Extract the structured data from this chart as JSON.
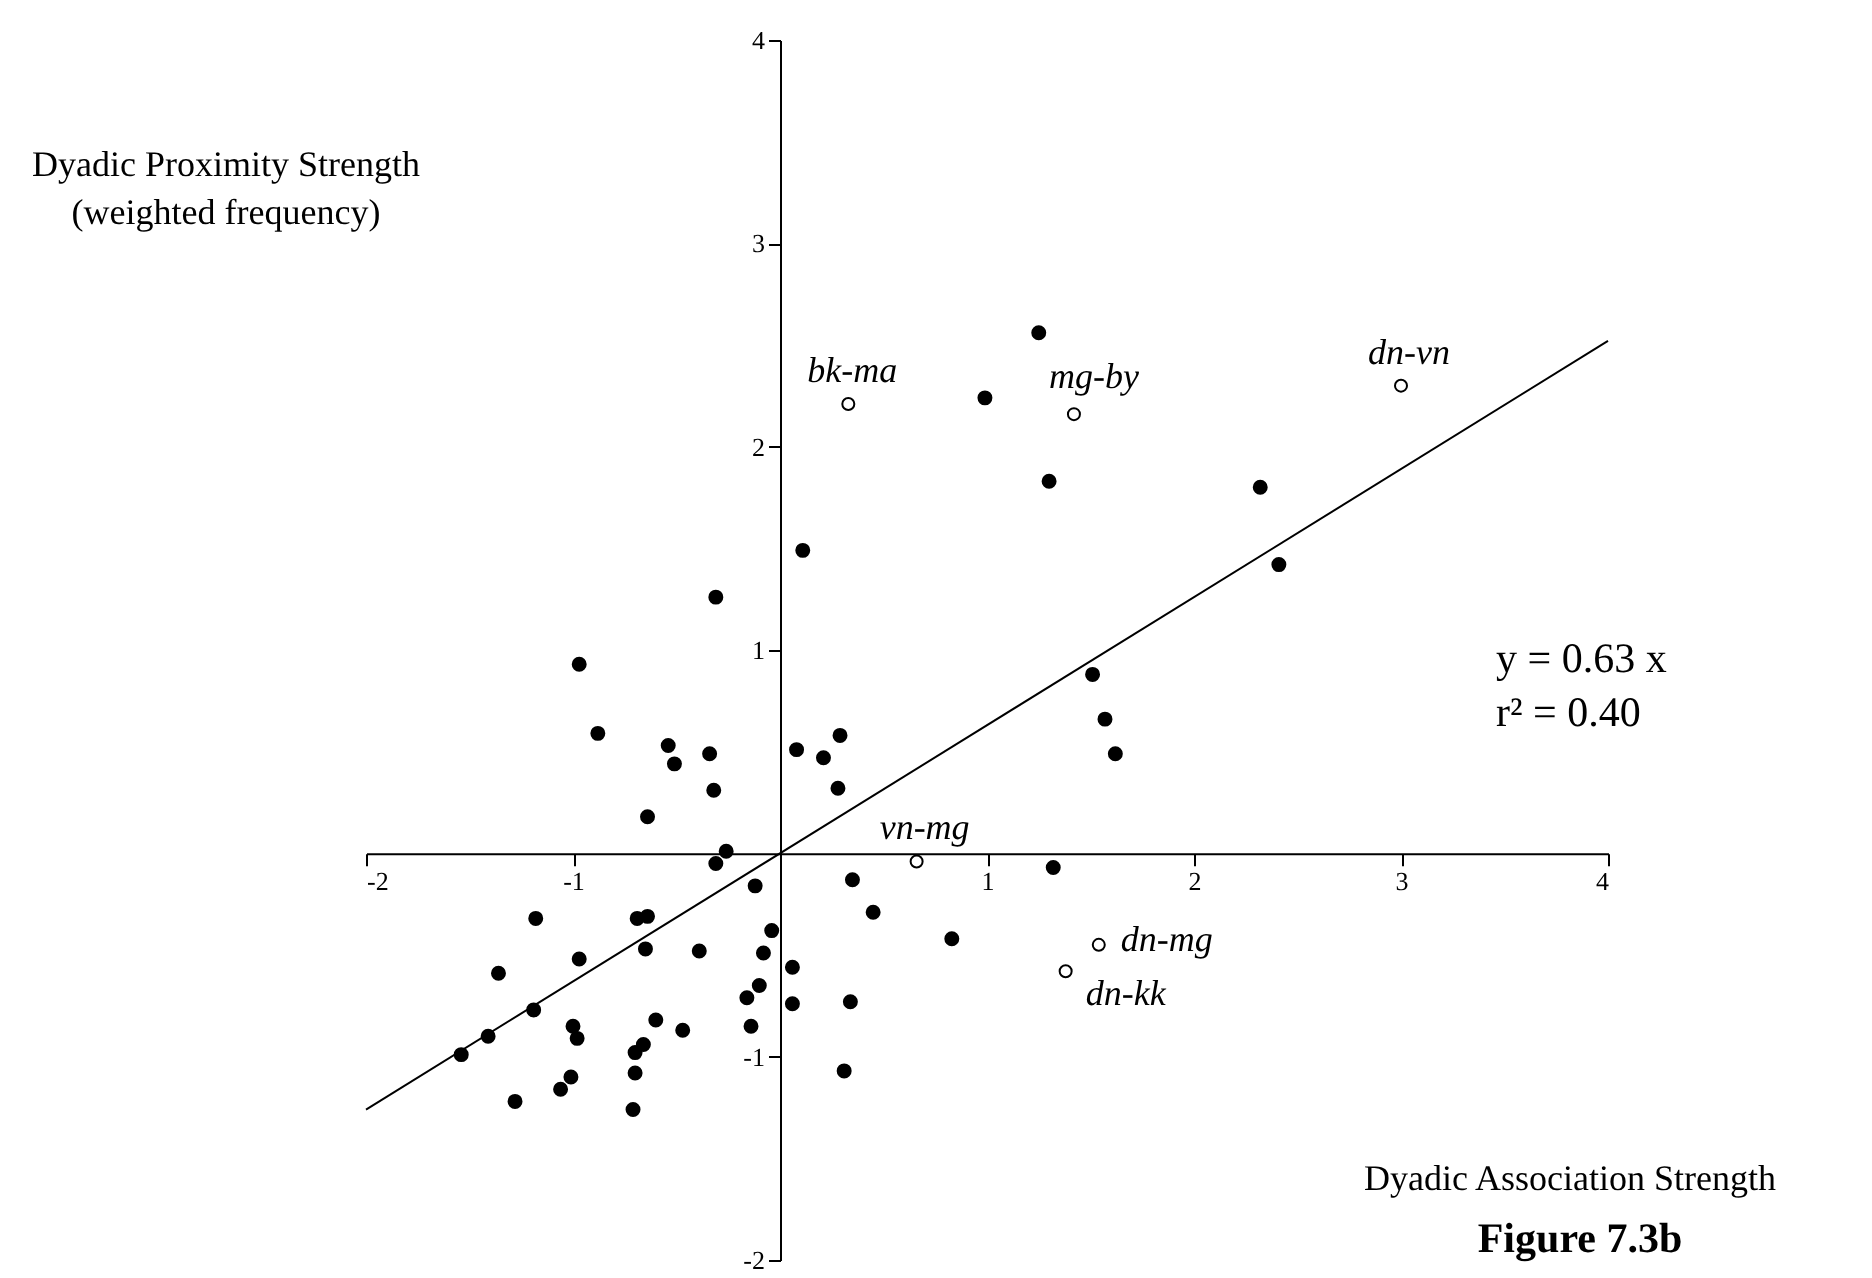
{
  "chart_data": {
    "type": "scatter",
    "title": "Figure 7.3b",
    "xlabel": "Dyadic Association Strength",
    "ylabel": "Dyadic Proximity Strength\n(weighted frequency)",
    "xlim": [
      -2,
      4
    ],
    "ylim": [
      -2,
      4
    ],
    "xticks": [
      -2,
      -1,
      1,
      2,
      3,
      4
    ],
    "yticks": [
      -2,
      -1,
      1,
      2,
      3,
      4
    ],
    "grid": false,
    "marker": "circle",
    "series": [
      {
        "color": "#000000",
        "x": [
          -0.31,
          -0.97,
          -0.88,
          -0.54,
          -0.51,
          -0.34,
          -0.32,
          -0.64,
          -0.26,
          -0.31,
          0.08,
          0.21,
          0.29,
          0.28,
          -0.12,
          0.35,
          0.45,
          -1.18,
          -0.69,
          -0.64,
          -0.04,
          -0.65,
          -0.39,
          -0.08,
          -0.97,
          -1.36,
          0.06,
          -0.1,
          -0.16,
          -1.19,
          0.06,
          0.34,
          -0.6,
          -0.47,
          -0.14,
          -1.0,
          -0.98,
          -1.41,
          -1.54,
          -0.66,
          -0.7,
          -0.7,
          -1.01,
          -1.06,
          -1.28,
          -0.71,
          0.31,
          1.25,
          0.99,
          1.3,
          0.11,
          2.32,
          2.41,
          1.51,
          1.57,
          1.62,
          1.32,
          0.83
        ],
        "values": [
          1.26,
          0.93,
          0.59,
          0.53,
          0.44,
          0.49,
          0.31,
          0.18,
          0.01,
          -0.05,
          0.51,
          0.47,
          0.58,
          0.32,
          -0.16,
          -0.13,
          -0.29,
          -0.32,
          -0.32,
          -0.31,
          -0.38,
          -0.47,
          -0.48,
          -0.49,
          -0.52,
          -0.59,
          -0.56,
          -0.65,
          -0.71,
          -0.77,
          -0.74,
          -0.73,
          -0.82,
          -0.87,
          -0.85,
          -0.85,
          -0.91,
          -0.9,
          -0.99,
          -0.94,
          -0.98,
          -1.08,
          -1.1,
          -1.16,
          -1.22,
          -1.26,
          -1.07,
          2.56,
          2.24,
          1.83,
          1.49,
          1.8,
          1.42,
          0.88,
          0.66,
          0.49,
          -0.07,
          -0.42
        ]
      },
      {
        "color": "#000000",
        "x": [
          0.33,
          1.42,
          3.0,
          0.66,
          1.54,
          1.38
        ],
        "values": [
          2.21,
          2.16,
          2.3,
          -0.04,
          -0.45,
          -0.58
        ]
      },
      {
        "type": "line",
        "color": "#000000",
        "marker": "none",
        "x": [
          -2,
          4
        ],
        "values": [
          -1.26,
          2.52
        ]
      }
    ],
    "annotations": [
      {
        "text": "bk-ma",
        "x": 0.33,
        "y": 2.21
      },
      {
        "text": "mg-by",
        "x": 1.42,
        "y": 2.16
      },
      {
        "text": "dn-vn",
        "x": 3.0,
        "y": 2.3
      },
      {
        "text": "vn-mg",
        "x": 0.66,
        "y": -0.04
      },
      {
        "text": "dn-mg",
        "x": 1.54,
        "y": -0.45
      },
      {
        "text": "dn-kk",
        "x": 1.38,
        "y": -0.58
      },
      "y = 0.63 x",
      "r² = 0.40"
    ]
  }
}
